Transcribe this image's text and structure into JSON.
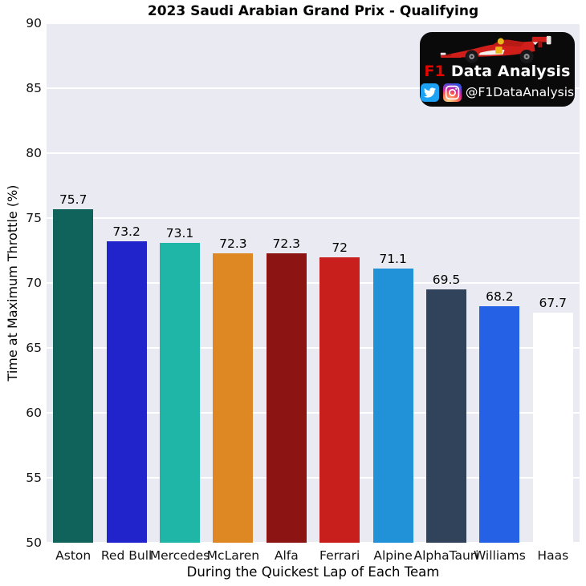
{
  "title": "2023 Saudi Arabian Grand Prix - Qualifying",
  "watermark": {
    "brand_f1": "F1",
    "brand_rest": "Data Analysis",
    "handle": "@F1DataAnalysis",
    "box_color": "#0a0a0a",
    "accent_red": "#e10600",
    "twitter_blue": "#1da1f2",
    "icon_names": [
      "twitter-icon",
      "instagram-icon",
      "f1-car-icon"
    ]
  },
  "chart_data": {
    "type": "bar",
    "title": "2023 Saudi Arabian Grand Prix - Qualifying",
    "xlabel": "During the Quickest Lap of Each Team",
    "ylabel": "Time at Maximum Throttle (%)",
    "ylim": [
      50,
      90
    ],
    "yticks": [
      90,
      85,
      80,
      75,
      70,
      65,
      60,
      55,
      50
    ],
    "grid": true,
    "legend": "none",
    "plot_bg_color": "#eaeaf2",
    "grid_color": "#ffffff",
    "categories": [
      "Aston",
      "Red Bull",
      "Mercedes",
      "McLaren",
      "Alfa",
      "Ferrari",
      "Alpine",
      "AlphaTauri",
      "Williams",
      "Haas"
    ],
    "values": [
      75.7,
      73.2,
      73.1,
      72.3,
      72.3,
      72,
      71.1,
      69.5,
      68.2,
      67.7
    ],
    "value_labels": [
      "75.7",
      "73.2",
      "73.1",
      "72.3",
      "72.3",
      "72",
      "71.1",
      "69.5",
      "68.2",
      "67.7"
    ],
    "bar_colors": [
      "#10635a",
      "#2123cb",
      "#1fb6a8",
      "#dd8823",
      "#8c1513",
      "#c81f1c",
      "#2191d8",
      "#30435a",
      "#2461e4",
      "#ffffff"
    ]
  }
}
